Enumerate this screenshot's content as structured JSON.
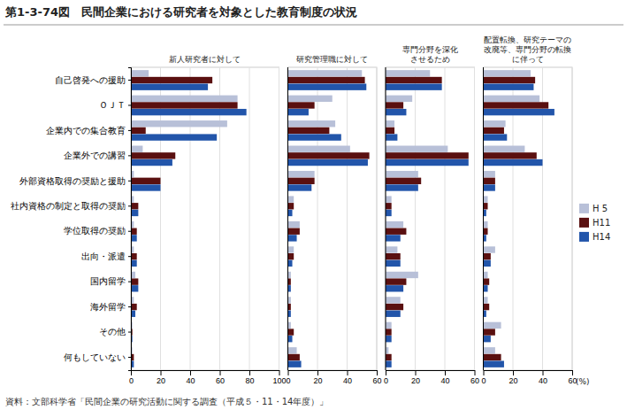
{
  "title": "第1-3-74図　民間企業における研究者を対象とした教育制度の状況",
  "annotations": [
    "資料：文部科学省「民間企業の研究活動に関する調査（平成５・11・14年度）」"
  ],
  "chart_data": [
    {
      "type": "bar",
      "orientation": "horizontal",
      "title": "新人研究者に対して",
      "categories": [
        "自己啓発への援助",
        "ＯＪＴ",
        "企業内での集合教育",
        "企業外での講習",
        "外部資格取得の奨励と援助",
        "社内資格の制定と取得の奨励",
        "学位取得の奨励",
        "出向・派遣",
        "国内留学",
        "海外留学",
        "その他",
        "何もしていない"
      ],
      "series": [
        {
          "name": "H 5",
          "color": "#b8c0d8",
          "values": [
            12,
            72,
            65,
            8,
            2,
            2,
            2,
            2,
            3,
            2,
            1,
            1
          ]
        },
        {
          "name": "H11",
          "color": "#5a1010",
          "values": [
            55,
            72,
            10,
            30,
            20,
            5,
            4,
            4,
            5,
            4,
            1,
            2
          ]
        },
        {
          "name": "H14",
          "color": "#2255aa",
          "values": [
            52,
            78,
            58,
            28,
            20,
            5,
            4,
            4,
            5,
            3,
            1,
            2
          ]
        }
      ],
      "xlim": [
        0,
        100
      ],
      "xticks": [
        0,
        20,
        40,
        60,
        80,
        100
      ],
      "grid": true
    },
    {
      "type": "bar",
      "orientation": "horizontal",
      "title": "研究管理職に対して",
      "categories": [
        "自己啓発への援助",
        "ＯＪＴ",
        "企業内での集合教育",
        "企業外での講習",
        "外部資格取得の奨励と援助",
        "社内資格の制定と取得の奨励",
        "学位取得の奨励",
        "出向・派遣",
        "国内留学",
        "海外留学",
        "その他",
        "何もしていない"
      ],
      "series": [
        {
          "name": "H 5",
          "color": "#b8c0d8",
          "values": [
            50,
            30,
            32,
            42,
            18,
            4,
            8,
            4,
            2,
            2,
            2,
            6
          ]
        },
        {
          "name": "H11",
          "color": "#5a1010",
          "values": [
            52,
            18,
            28,
            55,
            18,
            4,
            8,
            4,
            2,
            2,
            4,
            8
          ]
        },
        {
          "name": "H14",
          "color": "#2255aa",
          "values": [
            53,
            14,
            36,
            54,
            16,
            3,
            6,
            3,
            2,
            2,
            3,
            9
          ]
        }
      ],
      "xlim": [
        0,
        60
      ],
      "xticks": [
        0,
        20,
        40,
        60
      ],
      "grid": true,
      "tick_labels": "x"
    },
    {
      "type": "bar",
      "orientation": "horizontal",
      "title": "専門分野を深化\nさせるため",
      "categories": [
        "自己啓発への援助",
        "ＯＪＴ",
        "企業内での集合教育",
        "企業外での講習",
        "外部資格取得の奨励と援助",
        "社内資格の制定と取得の奨励",
        "学位取得の奨励",
        "出向・派遣",
        "国内留学",
        "海外留学",
        "その他",
        "何もしていない"
      ],
      "series": [
        {
          "name": "H 5",
          "color": "#b8c0d8",
          "values": [
            30,
            18,
            6,
            42,
            22,
            4,
            12,
            8,
            22,
            10,
            4,
            2
          ]
        },
        {
          "name": "H11",
          "color": "#5a1010",
          "values": [
            38,
            12,
            6,
            56,
            24,
            4,
            14,
            10,
            14,
            12,
            4,
            4
          ]
        },
        {
          "name": "H14",
          "color": "#2255aa",
          "values": [
            38,
            14,
            8,
            56,
            22,
            4,
            10,
            10,
            12,
            10,
            4,
            4
          ]
        }
      ],
      "xlim": [
        0,
        60
      ],
      "xticks": [
        0,
        20,
        40,
        60
      ],
      "grid": true,
      "tick_labels": "x"
    },
    {
      "type": "bar",
      "orientation": "horizontal",
      "title": "配置転換、研究テーマの\n改廃等、専門分野の転換\nに伴って",
      "categories": [
        "自己啓発への援助",
        "ＯＪＴ",
        "企業内での集合教育",
        "企業外での講習",
        "外部資格取得の奨励と援助",
        "社内資格の制定と取得の奨励",
        "学位取得の奨励",
        "出向・派遣",
        "国内留学",
        "海外留学",
        "その他",
        "何もしていない"
      ],
      "series": [
        {
          "name": "H 5",
          "color": "#b8c0d8",
          "values": [
            32,
            38,
            15,
            28,
            8,
            3,
            3,
            8,
            3,
            3,
            12,
            8
          ]
        },
        {
          "name": "H11",
          "color": "#5a1010",
          "values": [
            35,
            44,
            14,
            36,
            8,
            3,
            3,
            5,
            4,
            4,
            8,
            12
          ]
        },
        {
          "name": "H14",
          "color": "#2255aa",
          "values": [
            34,
            48,
            16,
            40,
            8,
            2,
            2,
            5,
            3,
            2,
            5,
            14
          ]
        }
      ],
      "xlim": [
        0,
        60
      ],
      "xticks": [
        0,
        20,
        40,
        60
      ],
      "grid": true,
      "tick_labels": "x",
      "xlabel": "(%)",
      "legend": "right"
    }
  ]
}
